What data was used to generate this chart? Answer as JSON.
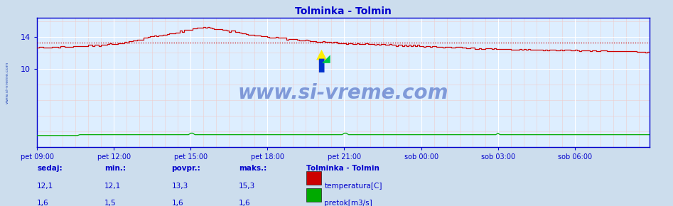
{
  "title": "Tolminka - Tolmin",
  "title_color": "#0000cc",
  "plot_bg_color": "#ddeeff",
  "fig_bg_color": "#ccdded",
  "x_labels": [
    "pet 09:00",
    "pet 12:00",
    "pet 15:00",
    "pet 18:00",
    "pet 21:00",
    "sob 00:00",
    "sob 03:00",
    "sob 06:00"
  ],
  "x_ticks_idx": [
    0,
    36,
    72,
    108,
    144,
    180,
    216,
    252
  ],
  "total_points": 288,
  "ylim": [
    0,
    16.5
  ],
  "ytick_positions": [
    10,
    14
  ],
  "temp_color": "#cc0000",
  "pretok_color": "#00aa00",
  "avg_line_color": "#cc0000",
  "avg_line_value": 13.3,
  "watermark_text": "www.si-vreme.com",
  "watermark_color": "#3355bb",
  "sidebar_text": "www.si-vreme.com",
  "sidebar_color": "#3355bb",
  "legend_title": "Tolminka - Tolmin",
  "legend_title_color": "#0000cc",
  "legend_items": [
    {
      "label": "temperatura[C]",
      "color": "#cc0000"
    },
    {
      "label": "pretok[m3/s]",
      "color": "#00aa00"
    }
  ],
  "table_headers": [
    "sedaj:",
    "min.:",
    "povpr.:",
    "maks.:"
  ],
  "table_temp": [
    "12,1",
    "12,1",
    "13,3",
    "15,3"
  ],
  "table_pretok": [
    "1,6",
    "1,5",
    "1,6",
    "1,6"
  ],
  "table_color": "#0000cc",
  "axis_color": "#0000cc",
  "tick_color": "#0000cc",
  "spine_color": "#0000cc",
  "major_grid_color": "#ffffff",
  "minor_grid_color": "#eecccc",
  "major_grid_lw": 0.8,
  "minor_grid_lw": 0.4
}
